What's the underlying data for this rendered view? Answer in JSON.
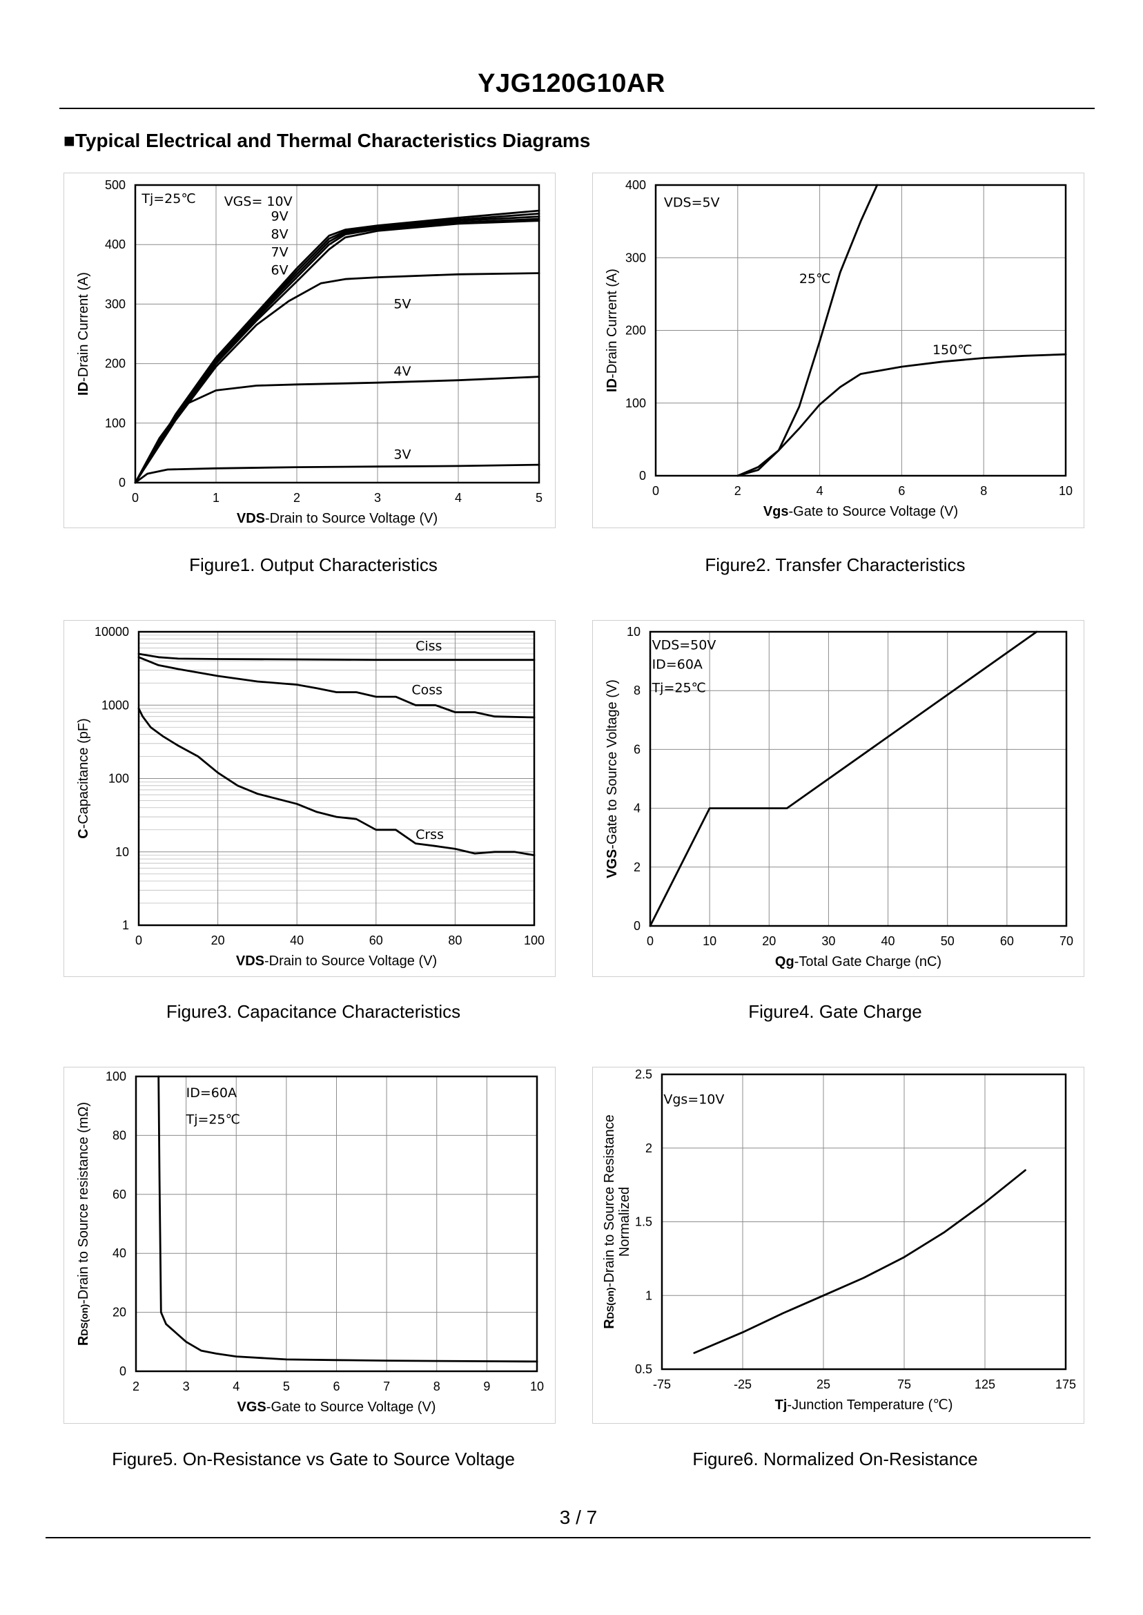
{
  "header": {
    "title": "YJG120G10AR",
    "section_heading": "■Typical Electrical and Thermal Characteristics Diagrams"
  },
  "footer": {
    "page": "3 / 7"
  },
  "chart_data": [
    {
      "id": "fig1",
      "type": "line",
      "title": "Figure1. Output Characteristics",
      "xlabel_bold": "VDS",
      "xlabel_rest": "-Drain to Source Voltage (V)",
      "ylabel_bold": "ID",
      "ylabel_rest": "-Drain Current (A)",
      "xlim": [
        0,
        5
      ],
      "ylim": [
        0,
        500
      ],
      "xticks": [
        0,
        1,
        2,
        3,
        4,
        5
      ],
      "yticks": [
        0,
        100,
        200,
        300,
        400,
        500
      ],
      "annotations": {
        "tj": "Tj=25℃",
        "vgs": "VGS= 10V",
        "v9": "9V",
        "v8": "8V",
        "v7": "7V",
        "v6": "6V",
        "v5": "5V",
        "v4": "4V",
        "v3": "3V"
      },
      "series": [
        {
          "name": "10V",
          "x": [
            0,
            0.5,
            1,
            1.5,
            2,
            2.4,
            2.6,
            3,
            4,
            5
          ],
          "y": [
            0,
            115,
            210,
            285,
            360,
            415,
            425,
            432,
            445,
            457
          ]
        },
        {
          "name": "9V",
          "x": [
            0,
            0.5,
            1,
            1.5,
            2,
            2.4,
            2.6,
            3,
            4,
            5
          ],
          "y": [
            0,
            113,
            207,
            282,
            355,
            410,
            422,
            430,
            442,
            452
          ]
        },
        {
          "name": "8V",
          "x": [
            0,
            0.5,
            1,
            1.5,
            2,
            2.4,
            2.6,
            3,
            4,
            5
          ],
          "y": [
            0,
            112,
            205,
            280,
            350,
            405,
            420,
            428,
            440,
            447
          ]
        },
        {
          "name": "7V",
          "x": [
            0,
            0.5,
            1,
            1.5,
            2,
            2.4,
            2.6,
            3,
            4,
            5
          ],
          "y": [
            0,
            110,
            203,
            276,
            345,
            400,
            417,
            426,
            437,
            443
          ]
        },
        {
          "name": "6V",
          "x": [
            0,
            0.5,
            1,
            1.5,
            2,
            2.4,
            2.6,
            3,
            4,
            5
          ],
          "y": [
            0,
            108,
            200,
            272,
            338,
            392,
            412,
            423,
            435,
            440
          ]
        },
        {
          "name": "5V",
          "x": [
            0,
            0.5,
            1,
            1.5,
            1.9,
            2.3,
            2.6,
            3,
            4,
            5
          ],
          "y": [
            0,
            105,
            195,
            265,
            305,
            335,
            342,
            345,
            350,
            352
          ]
        },
        {
          "name": "4V",
          "x": [
            0,
            0.3,
            0.6,
            1,
            1.5,
            2,
            3,
            4,
            5
          ],
          "y": [
            0,
            75,
            130,
            155,
            163,
            165,
            168,
            172,
            178
          ]
        },
        {
          "name": "3V",
          "x": [
            0,
            0.15,
            0.4,
            1,
            2,
            3,
            4,
            5
          ],
          "y": [
            0,
            15,
            22,
            24,
            26,
            27,
            28,
            30
          ]
        }
      ]
    },
    {
      "id": "fig2",
      "type": "line",
      "title": "Figure2. Transfer Characteristics",
      "xlabel_bold": "Vgs",
      "xlabel_rest": "-Gate to Source Voltage (V)",
      "ylabel_bold": "ID",
      "ylabel_rest": "-Drain Current (A)",
      "xlim": [
        0,
        10
      ],
      "ylim": [
        0,
        400
      ],
      "xticks": [
        0,
        2,
        4,
        6,
        8,
        10
      ],
      "yticks": [
        0,
        100,
        200,
        300,
        400
      ],
      "annotations": {
        "vds": "VDS=5V",
        "t25": "25℃",
        "t150": "150℃"
      },
      "series": [
        {
          "name": "25℃",
          "x": [
            2,
            2.5,
            3,
            3.5,
            4,
            4.5,
            5,
            5.4
          ],
          "y": [
            0,
            8,
            35,
            95,
            185,
            280,
            350,
            400
          ]
        },
        {
          "name": "150℃",
          "x": [
            2,
            2.5,
            3,
            3.5,
            4,
            4.5,
            5,
            6,
            7,
            8,
            9,
            10
          ],
          "y": [
            0,
            12,
            35,
            65,
            98,
            122,
            140,
            150,
            157,
            162,
            165,
            167
          ]
        }
      ]
    },
    {
      "id": "fig3",
      "type": "line",
      "title": "Figure3. Capacitance Characteristics",
      "xlabel_bold": "VDS",
      "xlabel_rest": "-Drain to Source Voltage (V)",
      "ylabel_bold": "C",
      "ylabel_rest": "-Capacitance (pF)",
      "xlim": [
        0,
        100
      ],
      "ylim": [
        1,
        10000
      ],
      "yscale": "log",
      "xticks": [
        0,
        20,
        40,
        60,
        80,
        100
      ],
      "yticks": [
        1,
        10,
        100,
        1000,
        10000
      ],
      "annotations": {
        "ciss": "Ciss",
        "coss": "Coss",
        "crss": "Crss"
      },
      "series": [
        {
          "name": "Ciss",
          "x": [
            0,
            5,
            10,
            20,
            40,
            60,
            80,
            100
          ],
          "y": [
            5000,
            4500,
            4300,
            4250,
            4200,
            4150,
            4150,
            4150
          ]
        },
        {
          "name": "Coss",
          "x": [
            0,
            5,
            10,
            20,
            30,
            40,
            45,
            50,
            55,
            60,
            65,
            70,
            75,
            80,
            85,
            90,
            100
          ],
          "y": [
            4500,
            3500,
            3100,
            2500,
            2100,
            1900,
            1700,
            1500,
            1500,
            1300,
            1300,
            1000,
            1000,
            800,
            800,
            700,
            680
          ]
        },
        {
          "name": "Crss",
          "x": [
            0,
            1,
            3,
            6,
            10,
            15,
            20,
            25,
            30,
            40,
            45,
            50,
            55,
            60,
            65,
            70,
            75,
            80,
            85,
            90,
            95,
            100
          ],
          "y": [
            900,
            700,
            500,
            380,
            280,
            200,
            120,
            80,
            62,
            45,
            35,
            30,
            28,
            20,
            20,
            13,
            12,
            11,
            9.5,
            10,
            10,
            9
          ]
        }
      ]
    },
    {
      "id": "fig4",
      "type": "line",
      "title": "Figure4. Gate Charge",
      "xlabel_bold": "Qg",
      "xlabel_rest": "-Total  Gate Charge (nC)",
      "ylabel_bold": "VGS",
      "ylabel_rest": "-Gate to Source Voltage (V)",
      "xlim": [
        0,
        70
      ],
      "ylim": [
        0,
        10
      ],
      "xticks": [
        0,
        10,
        20,
        30,
        40,
        50,
        60,
        70
      ],
      "yticks": [
        0,
        2,
        4,
        6,
        8,
        10
      ],
      "annotations": {
        "vds": "VDS=50V",
        "id": "ID=60A",
        "tj": "Tj=25℃"
      },
      "series": [
        {
          "name": "VGS",
          "x": [
            0,
            10,
            23,
            65
          ],
          "y": [
            0,
            4,
            4,
            10
          ]
        }
      ]
    },
    {
      "id": "fig5",
      "type": "line",
      "title": "Figure5. On-Resistance vs Gate to Source Voltage",
      "xlabel_bold": "VGS",
      "xlabel_rest": "-Gate to Source Voltage (V)",
      "ylabel_bold": "R",
      "ylabel_sub": "DS(on)",
      "ylabel_rest": "-Drain to Source resistance (mΩ)",
      "xlim": [
        2,
        10
      ],
      "ylim": [
        0,
        100
      ],
      "xticks": [
        2,
        3,
        4,
        5,
        6,
        7,
        8,
        9,
        10
      ],
      "yticks": [
        0,
        20,
        40,
        60,
        80,
        100
      ],
      "annotations": {
        "id": "ID=60A",
        "tj": "Tj=25℃"
      },
      "series": [
        {
          "name": "RDS(on)",
          "x": [
            2.45,
            2.47,
            2.5,
            2.6,
            2.8,
            3,
            3.3,
            3.6,
            4,
            5,
            6,
            7,
            8,
            9,
            10
          ],
          "y": [
            100,
            65,
            20,
            16,
            13,
            10,
            7,
            6,
            5,
            4,
            3.8,
            3.6,
            3.5,
            3.4,
            3.3
          ]
        }
      ]
    },
    {
      "id": "fig6",
      "type": "line",
      "title": "Figure6. Normalized On-Resistance",
      "xlabel_bold": "Tj",
      "xlabel_rest": "-Junction  Temperature (℃)",
      "ylabel_bold": "R",
      "ylabel_sub": "DS(on)",
      "ylabel_rest": "-Drain to Source Resistance",
      "ylabel_line2": "Normalized",
      "xlim": [
        -75,
        175
      ],
      "ylim": [
        0.5,
        2.5
      ],
      "xticks": [
        -75,
        -25,
        25,
        75,
        125,
        175
      ],
      "yticks": [
        0.5,
        1,
        1.5,
        2,
        2.5
      ],
      "annotations": {
        "vgs": "Vgs=10V"
      },
      "series": [
        {
          "name": "Normalized",
          "x": [
            -55,
            -25,
            0,
            25,
            50,
            75,
            100,
            125,
            150
          ],
          "y": [
            0.61,
            0.75,
            0.88,
            1.0,
            1.12,
            1.26,
            1.43,
            1.63,
            1.85
          ]
        }
      ]
    }
  ]
}
